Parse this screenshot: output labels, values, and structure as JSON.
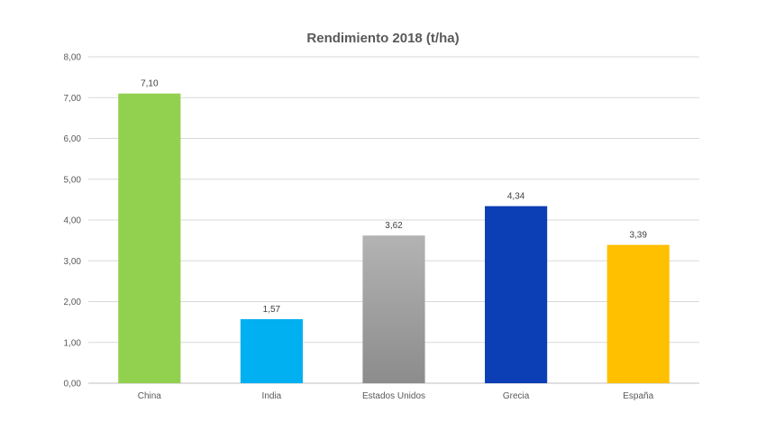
{
  "chart_data": {
    "type": "bar",
    "title": "Rendimiento 2018 (t/ha)",
    "xlabel": "",
    "ylabel": "",
    "categories": [
      "China",
      "India",
      "Estados Unidos",
      "Grecia",
      "España"
    ],
    "values": [
      7.1,
      1.57,
      3.62,
      4.34,
      3.39
    ],
    "data_labels": [
      "7,10",
      "1,57",
      "3,62",
      "4,34",
      "3,39"
    ],
    "ylim": [
      0,
      8
    ],
    "yticks": [
      0,
      1,
      2,
      3,
      4,
      5,
      6,
      7,
      8
    ],
    "ytick_labels": [
      "0,00",
      "1,00",
      "2,00",
      "3,00",
      "4,00",
      "5,00",
      "6,00",
      "7,00",
      "8,00"
    ],
    "colors": [
      "#92d050",
      "#00b0f0",
      "#a6a6a6",
      "#0c3fb5",
      "#ffc000"
    ],
    "grid": true,
    "legend": "none"
  }
}
